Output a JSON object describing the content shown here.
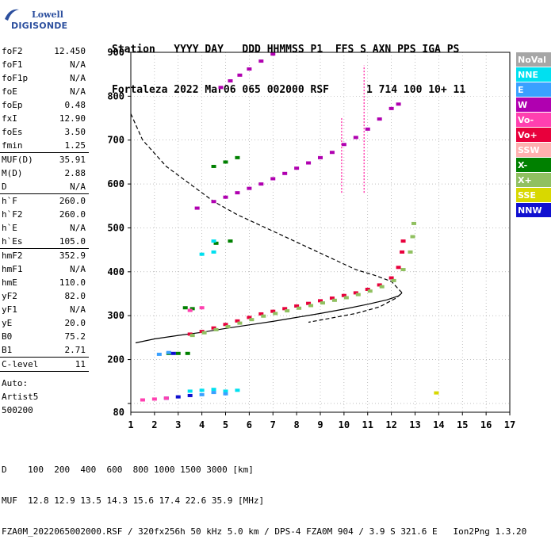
{
  "logo": {
    "line1": "Lowell",
    "line2": "DIGISONDE"
  },
  "header": {
    "labels": [
      "Station",
      "YYYY DAY",
      "DDD",
      "HHMMSS",
      "P1",
      "FFS",
      "S",
      "AXN",
      "PPS",
      "IGA",
      "PS"
    ],
    "values": [
      "Fortaleza",
      "2022 Mar06",
      "065",
      "002000",
      "RSF",
      "1",
      "714",
      "100",
      "10+",
      "11"
    ]
  },
  "params": {
    "group1": [
      {
        "name": "foF2",
        "value": "12.450"
      },
      {
        "name": "foF1",
        "value": "N/A"
      },
      {
        "name": "foF1p",
        "value": "N/A"
      },
      {
        "name": "foE",
        "value": "N/A"
      },
      {
        "name": "foEp",
        "value": "0.48"
      },
      {
        "name": "fxI",
        "value": "12.90"
      },
      {
        "name": "foEs",
        "value": "3.50"
      },
      {
        "name": "fmin",
        "value": "1.25"
      }
    ],
    "group2": [
      {
        "name": "MUF(D)",
        "value": "35.91"
      },
      {
        "name": "M(D)",
        "value": "2.88"
      },
      {
        "name": "D",
        "value": "N/A"
      }
    ],
    "group3": [
      {
        "name": "h`F",
        "value": "260.0"
      },
      {
        "name": "h`F2",
        "value": "260.0"
      },
      {
        "name": "h`E",
        "value": "N/A"
      },
      {
        "name": "h`Es",
        "value": "105.0"
      }
    ],
    "group4": [
      {
        "name": "hmF2",
        "value": "352.9"
      },
      {
        "name": "hmF1",
        "value": "N/A"
      },
      {
        "name": "hmE",
        "value": "110.0"
      },
      {
        "name": "yF2",
        "value": "82.0"
      },
      {
        "name": "yF1",
        "value": "N/A"
      },
      {
        "name": "yE",
        "value": "20.0"
      },
      {
        "name": "B0",
        "value": "75.2"
      },
      {
        "name": "B1",
        "value": "2.71"
      }
    ],
    "group5": [
      {
        "name": "C-level",
        "value": "11"
      }
    ],
    "auto": [
      "Auto:",
      "Artist5",
      "500200"
    ]
  },
  "legend": [
    {
      "label": "NoVal",
      "color": "#a6a6a6"
    },
    {
      "label": "NNE",
      "color": "#00e0f0"
    },
    {
      "label": "E",
      "color": "#3aa0ff"
    },
    {
      "label": "W",
      "color": "#b000b0"
    },
    {
      "label": "Vo-",
      "color": "#ff40b0"
    },
    {
      "label": "Vo+",
      "color": "#e8003c"
    },
    {
      "label": "SSW",
      "color": "#ffb0b0"
    },
    {
      "label": "X-",
      "color": "#008000"
    },
    {
      "label": "X+",
      "color": "#90c060"
    },
    {
      "label": "SSE",
      "color": "#d8d800"
    },
    {
      "label": "NNW",
      "color": "#1010d0"
    }
  ],
  "footer": {
    "line1": "D    100  200  400  600  800 1000 1500 3000 [km]",
    "line2": "MUF  12.8 12.9 13.5 14.3 15.6 17.4 22.6 35.9 [MHz]",
    "line3": "FZA0M_2022065002000.RSF / 320fx256h 50 kHz 5.0 km / DPS-4 FZA0M 904 / 3.9 S 321.6 E   Ion2Png 1.3.20"
  },
  "chart_data": {
    "type": "scatter",
    "title": "",
    "xlabel": "",
    "ylabel": "",
    "xlim": [
      1,
      17
    ],
    "ylim": [
      80,
      900
    ],
    "x_ticks": [
      1,
      2,
      3,
      4,
      5,
      6,
      7,
      8,
      9,
      10,
      11,
      12,
      13,
      14,
      15,
      16,
      17
    ],
    "y_ticks": [
      100,
      200,
      300,
      400,
      500,
      600,
      700,
      800,
      900
    ],
    "y_tick_labels": [
      "",
      "200",
      "300",
      "400",
      "500",
      "600",
      "700",
      "800",
      "900"
    ],
    "extra_y_label": "80",
    "grid": "dotted",
    "series": [
      {
        "name": "Vo+",
        "color": "#e8003c",
        "points": [
          [
            3.5,
            258
          ],
          [
            4.0,
            264
          ],
          [
            4.5,
            272
          ],
          [
            5.0,
            280
          ],
          [
            5.5,
            288
          ],
          [
            6.0,
            296
          ],
          [
            6.5,
            304
          ],
          [
            7.0,
            310
          ],
          [
            7.5,
            316
          ],
          [
            8.0,
            322
          ],
          [
            8.5,
            328
          ],
          [
            9.0,
            334
          ],
          [
            9.5,
            340
          ],
          [
            10.0,
            346
          ],
          [
            10.5,
            352
          ],
          [
            11.0,
            360
          ],
          [
            11.5,
            370
          ],
          [
            12.0,
            386
          ],
          [
            12.3,
            410
          ],
          [
            12.45,
            445
          ],
          [
            12.5,
            470
          ]
        ]
      },
      {
        "name": "X+",
        "color": "#90c060",
        "points": [
          [
            3.6,
            255
          ],
          [
            4.1,
            261
          ],
          [
            4.6,
            268
          ],
          [
            5.1,
            275
          ],
          [
            5.6,
            283
          ],
          [
            6.1,
            291
          ],
          [
            6.6,
            299
          ],
          [
            7.1,
            305
          ],
          [
            7.6,
            311
          ],
          [
            8.1,
            317
          ],
          [
            8.6,
            323
          ],
          [
            9.1,
            329
          ],
          [
            9.6,
            335
          ],
          [
            10.1,
            341
          ],
          [
            10.6,
            348
          ],
          [
            11.1,
            356
          ],
          [
            11.6,
            366
          ],
          [
            12.1,
            380
          ],
          [
            12.5,
            405
          ],
          [
            12.8,
            445
          ],
          [
            12.9,
            480
          ],
          [
            12.95,
            510
          ]
        ]
      },
      {
        "name": "W",
        "color": "#b000b0",
        "points": [
          [
            3.8,
            545
          ],
          [
            4.5,
            560
          ],
          [
            5.0,
            570
          ],
          [
            5.5,
            580
          ],
          [
            6.0,
            590
          ],
          [
            6.5,
            600
          ],
          [
            7.0,
            612
          ],
          [
            7.5,
            624
          ],
          [
            8.0,
            636
          ],
          [
            8.5,
            648
          ],
          [
            9.0,
            660
          ],
          [
            9.5,
            672
          ],
          [
            10.0,
            690
          ],
          [
            10.5,
            706
          ],
          [
            11.0,
            725
          ],
          [
            11.5,
            748
          ],
          [
            12.0,
            772
          ],
          [
            12.3,
            782
          ],
          [
            4.8,
            820
          ],
          [
            5.2,
            835
          ],
          [
            5.6,
            848
          ],
          [
            6.0,
            862
          ],
          [
            6.5,
            880
          ],
          [
            7.0,
            896
          ]
        ]
      },
      {
        "name": "X-",
        "color": "#008000",
        "points": [
          [
            3.3,
            318
          ],
          [
            3.6,
            316
          ],
          [
            2.6,
            214
          ],
          [
            3.0,
            214
          ],
          [
            3.4,
            214
          ],
          [
            4.5,
            640
          ],
          [
            5.0,
            650
          ],
          [
            5.5,
            660
          ],
          [
            4.6,
            465
          ],
          [
            5.2,
            470
          ]
        ]
      },
      {
        "name": "NNE",
        "color": "#00e0f0",
        "points": [
          [
            3.5,
            128
          ],
          [
            4.0,
            130
          ],
          [
            4.5,
            132
          ],
          [
            5.0,
            128
          ],
          [
            5.5,
            130
          ],
          [
            4.0,
            440
          ],
          [
            4.5,
            445
          ],
          [
            4.5,
            470
          ]
        ]
      },
      {
        "name": "E",
        "color": "#3aa0ff",
        "points": [
          [
            4.0,
            120
          ],
          [
            4.5,
            125
          ],
          [
            5.0,
            122
          ],
          [
            2.2,
            212
          ],
          [
            2.6,
            216
          ]
        ]
      },
      {
        "name": "NNW",
        "color": "#1010d0",
        "points": [
          [
            2.5,
            112
          ],
          [
            3.0,
            115
          ],
          [
            3.5,
            118
          ],
          [
            2.8,
            214
          ]
        ]
      },
      {
        "name": "Vo-",
        "color": "#ff40b0",
        "points": [
          [
            1.5,
            108
          ],
          [
            2.0,
            110
          ],
          [
            2.5,
            112
          ],
          [
            3.5,
            312
          ],
          [
            4.0,
            318
          ]
        ]
      },
      {
        "name": "SSE",
        "color": "#d8d800",
        "points": [
          [
            13.9,
            124
          ]
        ]
      }
    ],
    "curves": [
      {
        "name": "virtual-height-profile",
        "style": "solid",
        "points": [
          [
            1.2,
            238
          ],
          [
            2.0,
            247
          ],
          [
            3.0,
            255
          ],
          [
            4.0,
            262
          ],
          [
            5.0,
            271
          ],
          [
            6.0,
            279
          ],
          [
            7.0,
            287
          ],
          [
            8.0,
            296
          ],
          [
            9.0,
            305
          ],
          [
            10.0,
            315
          ],
          [
            11.0,
            326
          ],
          [
            11.8,
            336
          ],
          [
            12.3,
            345
          ],
          [
            12.45,
            352
          ]
        ]
      },
      {
        "name": "electron-density-profile",
        "style": "dashed",
        "points": [
          [
            1.0,
            760
          ],
          [
            1.5,
            700
          ],
          [
            2.5,
            640
          ],
          [
            3.5,
            600
          ],
          [
            4.5,
            560
          ],
          [
            5.5,
            530
          ],
          [
            6.5,
            505
          ],
          [
            7.5,
            480
          ],
          [
            8.5,
            455
          ],
          [
            9.5,
            430
          ],
          [
            10.5,
            405
          ],
          [
            11.3,
            392
          ],
          [
            12.0,
            378
          ],
          [
            12.45,
            352
          ],
          [
            12.2,
            340
          ],
          [
            11.5,
            320
          ],
          [
            10.5,
            305
          ],
          [
            9.5,
            295
          ],
          [
            8.5,
            285
          ]
        ]
      }
    ],
    "vertical_spikes": [
      {
        "x": 9.9,
        "y_from": 580,
        "y_to": 750
      },
      {
        "x": 10.85,
        "y_from": 580,
        "y_to": 870
      }
    ]
  }
}
